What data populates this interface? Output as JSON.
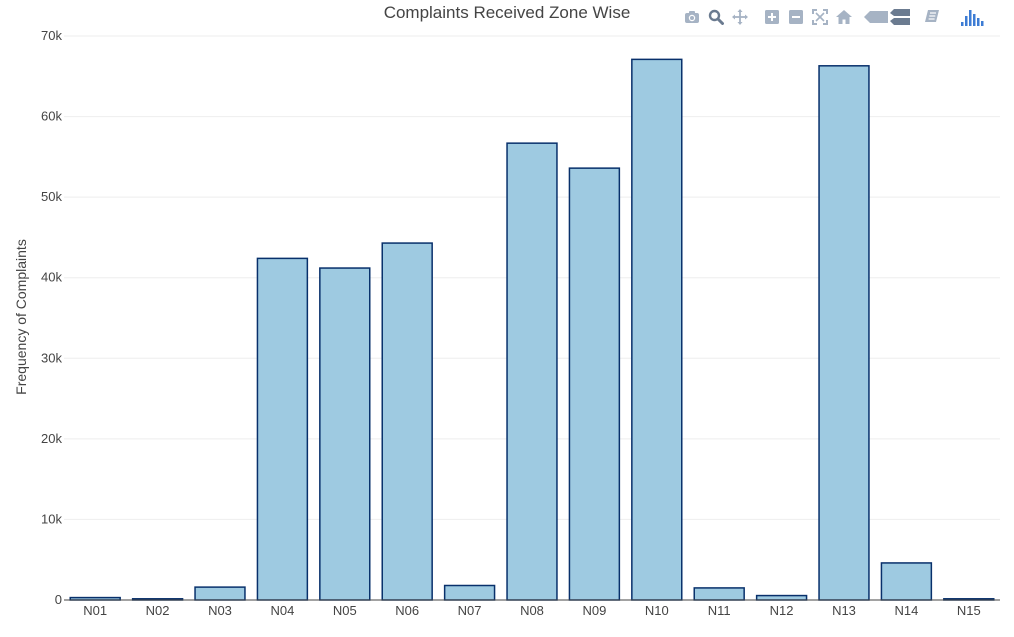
{
  "chart_data": {
    "type": "bar",
    "title": "Complaints Received Zone Wise",
    "xlabel": "",
    "ylabel": "Frequency of Complaints",
    "categories": [
      "N01",
      "N02",
      "N03",
      "N04",
      "N05",
      "N06",
      "N07",
      "N08",
      "N09",
      "N10",
      "N11",
      "N12",
      "N13",
      "N14",
      "N15"
    ],
    "values": [
      300,
      150,
      1600,
      42400,
      41200,
      44300,
      1800,
      56700,
      53600,
      67100,
      1500,
      550,
      66300,
      4600,
      150
    ],
    "ylim": [
      0,
      70000
    ],
    "yticks": [
      0,
      10000,
      20000,
      30000,
      40000,
      50000,
      60000,
      70000
    ],
    "ytick_labels": [
      "0",
      "10k",
      "20k",
      "30k",
      "40k",
      "50k",
      "60k",
      "70k"
    ],
    "grid": true,
    "legend": "none",
    "colors": {
      "bar_fill": "#9ecae1",
      "bar_stroke": "#08306b",
      "grid": "#eeeeee",
      "text": "#444444"
    }
  },
  "modebar": {
    "buttons": [
      {
        "name": "camera-icon"
      },
      {
        "name": "zoom-icon"
      },
      {
        "name": "pan-icon"
      },
      {
        "name": "zoom-in-icon"
      },
      {
        "name": "zoom-out-icon"
      },
      {
        "name": "autoscale-icon"
      },
      {
        "name": "reset-axes-icon"
      },
      {
        "name": "hover-closest-icon"
      },
      {
        "name": "hover-compare-icon"
      },
      {
        "name": "edit-chart-icon"
      },
      {
        "name": "plotly-logo-icon"
      }
    ],
    "colors": {
      "icon": "#a6b3c4",
      "icon_dark": "#6b7b90",
      "logo": "#3d7cd4"
    }
  }
}
